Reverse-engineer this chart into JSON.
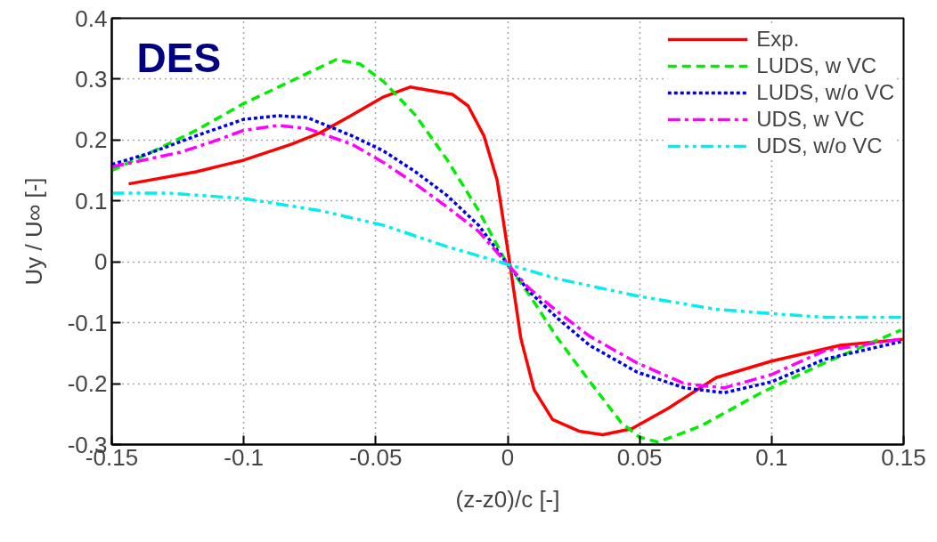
{
  "chart_data": {
    "type": "line",
    "xlabel": "(z-z0)/c [-]",
    "ylabel": "Uy / U∞ [-]",
    "annotations": [
      "DES"
    ],
    "xlim": [
      -0.15,
      0.15
    ],
    "ylim": [
      -0.3,
      0.4
    ],
    "xticks": [
      -0.15,
      -0.1,
      -0.05,
      0,
      0.05,
      0.1,
      0.15
    ],
    "yticks": [
      -0.3,
      -0.2,
      -0.1,
      0,
      0.1,
      0.2,
      0.3,
      0.4
    ],
    "grid": true,
    "legend": "top right",
    "marker": "none",
    "series": [
      {
        "name": "Exp.",
        "color": "#ff0000",
        "line_style": "solid",
        "x": [
          -0.1436,
          -0.118,
          -0.1,
          -0.082,
          -0.071,
          -0.059,
          -0.047,
          -0.037,
          -0.021,
          -0.015,
          -0.009,
          -0.004,
          0.0005,
          0.005,
          0.01,
          0.017,
          0.027,
          0.036,
          0.047,
          0.061,
          0.079,
          0.1,
          0.126,
          0.15
        ],
        "values": [
          0.128,
          0.148,
          0.167,
          0.193,
          0.212,
          0.241,
          0.271,
          0.287,
          0.275,
          0.256,
          0.207,
          0.134,
          0.006,
          -0.126,
          -0.21,
          -0.259,
          -0.278,
          -0.284,
          -0.274,
          -0.24,
          -0.19,
          -0.163,
          -0.137,
          -0.127
        ]
      },
      {
        "name": "LUDS, w VC",
        "color": "#00ee00",
        "line_style": "dashed",
        "x": [
          -0.15,
          -0.136,
          -0.118,
          -0.1,
          -0.082,
          -0.065,
          -0.056,
          -0.047,
          -0.035,
          -0.023,
          -0.011,
          0,
          0.008,
          0.019,
          0.031,
          0.043,
          0.05,
          0.057,
          0.073,
          0.096,
          0.12,
          0.149
        ],
        "values": [
          0.15,
          0.178,
          0.216,
          0.26,
          0.297,
          0.332,
          0.325,
          0.296,
          0.241,
          0.168,
          0.084,
          -0.005,
          -0.053,
          -0.126,
          -0.196,
          -0.264,
          -0.288,
          -0.296,
          -0.27,
          -0.215,
          -0.166,
          -0.112
        ]
      },
      {
        "name": "LUDS, w/o VC",
        "color": "#0000ee",
        "line_style": "dotted",
        "x": [
          -0.15,
          -0.136,
          -0.118,
          -0.1,
          -0.087,
          -0.076,
          -0.059,
          -0.047,
          -0.035,
          -0.023,
          -0.011,
          0,
          0.008,
          0.019,
          0.031,
          0.049,
          0.067,
          0.082,
          0.1,
          0.12,
          0.149
        ],
        "values": [
          0.16,
          0.178,
          0.207,
          0.234,
          0.24,
          0.237,
          0.207,
          0.182,
          0.148,
          0.109,
          0.06,
          -0.004,
          -0.048,
          -0.093,
          -0.137,
          -0.181,
          -0.207,
          -0.215,
          -0.197,
          -0.16,
          -0.131
        ]
      },
      {
        "name": "UDS, w VC",
        "color": "#ff00ff",
        "line_style": "dashdot",
        "x": [
          -0.15,
          -0.124,
          -0.112,
          -0.1,
          -0.087,
          -0.076,
          -0.059,
          -0.047,
          -0.035,
          -0.023,
          -0.011,
          0,
          0.008,
          0.019,
          0.031,
          0.049,
          0.067,
          0.082,
          0.1,
          0.12,
          0.149
        ],
        "values": [
          0.156,
          0.18,
          0.197,
          0.216,
          0.224,
          0.219,
          0.193,
          0.163,
          0.128,
          0.09,
          0.05,
          -0.004,
          -0.043,
          -0.082,
          -0.122,
          -0.166,
          -0.2,
          -0.207,
          -0.185,
          -0.146,
          -0.127
        ]
      },
      {
        "name": "UDS, w/o VC",
        "color": "#00eeee",
        "line_style": "dashdotdot",
        "x": [
          -0.15,
          -0.129,
          -0.1,
          -0.071,
          -0.047,
          -0.023,
          0,
          0.019,
          0.049,
          0.079,
          0.1,
          0.12,
          0.15
        ],
        "values": [
          0.113,
          0.113,
          0.104,
          0.084,
          0.06,
          0.025,
          -0.004,
          -0.028,
          -0.056,
          -0.078,
          -0.085,
          -0.091,
          -0.091
        ]
      }
    ]
  }
}
